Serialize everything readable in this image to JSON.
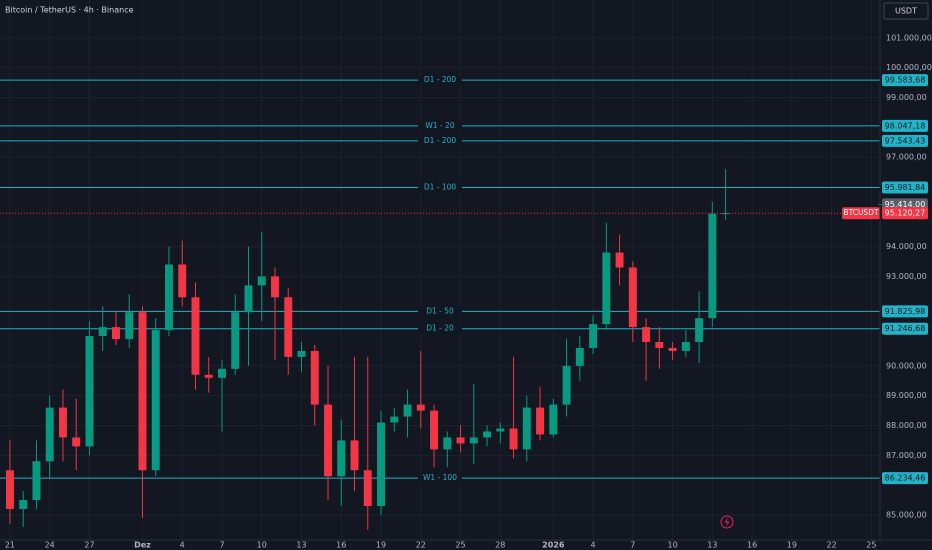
{
  "chart_data": {
    "type": "candlestick",
    "title": "Bitcoin / TetherUS · 4h · Binance",
    "currency": "USDT",
    "up_color": "#089981",
    "down_color": "#f23645",
    "level_color": "#22b3c6",
    "grid": true,
    "xlim": [
      -0.75,
      65.65
    ],
    "ylim": [
      84160,
      102270
    ],
    "x": [
      0,
      1,
      2,
      3,
      4,
      5,
      6,
      7,
      8,
      9,
      10,
      11,
      12,
      13,
      14,
      15,
      16,
      17,
      18,
      19,
      20,
      21,
      22,
      23,
      24,
      25,
      26,
      27,
      28,
      29,
      30,
      31,
      32,
      33,
      34,
      35,
      36,
      37,
      38,
      39,
      40,
      41,
      42,
      43,
      44,
      45,
      46,
      47,
      48,
      49,
      50,
      51,
      52,
      53,
      54
    ],
    "open": [
      86500,
      85200,
      85500,
      86800,
      88600,
      87600,
      87300,
      91000,
      91300,
      90900,
      91800,
      86500,
      91200,
      93400,
      92300,
      89700,
      89600,
      89900,
      91800,
      92700,
      93000,
      92300,
      90300,
      90500,
      88700,
      86300,
      87500,
      86500,
      85300,
      88100,
      88300,
      88700,
      88500,
      87200,
      87600,
      87400,
      87600,
      87800,
      87900,
      87200,
      88600,
      87700,
      88700,
      90000,
      90600,
      91400,
      93800,
      93300,
      91300,
      90800,
      90600,
      90500,
      90800,
      91600,
      95100
    ],
    "high": [
      87500,
      85800,
      87500,
      89000,
      89200,
      88900,
      91500,
      92000,
      91800,
      92400,
      92000,
      91600,
      94000,
      94200,
      92800,
      90300,
      90200,
      92400,
      94000,
      94500,
      93300,
      92600,
      90800,
      90700,
      90000,
      88200,
      90300,
      90300,
      88500,
      88600,
      89200,
      90500,
      88700,
      87800,
      88000,
      89400,
      88000,
      88100,
      90300,
      89000,
      89300,
      88900,
      90900,
      91000,
      91700,
      94800,
      94400,
      93500,
      91600,
      91300,
      90800,
      91200,
      92500,
      95500,
      96600
    ],
    "low": [
      84700,
      84600,
      85200,
      86200,
      86800,
      86500,
      87000,
      90500,
      90700,
      90600,
      84900,
      86300,
      91000,
      92000,
      89200,
      89100,
      87800,
      89700,
      90000,
      91500,
      90200,
      89700,
      89800,
      88000,
      85500,
      85300,
      85800,
      84500,
      85000,
      87800,
      87600,
      87900,
      86600,
      86600,
      87100,
      86700,
      87300,
      87400,
      86900,
      86800,
      87500,
      87600,
      88300,
      89500,
      90400,
      91200,
      92700,
      90800,
      89500,
      89900,
      90200,
      90300,
      90100,
      91300,
      94900
    ],
    "close": [
      85200,
      85500,
      86800,
      88600,
      87600,
      87300,
      91000,
      91300,
      90900,
      91800,
      86500,
      91200,
      93400,
      92300,
      89700,
      89600,
      89900,
      91800,
      92700,
      93000,
      92300,
      90300,
      90500,
      88700,
      86300,
      87500,
      86500,
      85300,
      88100,
      88300,
      88700,
      88500,
      87200,
      87600,
      87400,
      87600,
      87800,
      87900,
      87200,
      88600,
      87700,
      88700,
      90000,
      90600,
      91400,
      93800,
      93300,
      91300,
      90800,
      90600,
      90500,
      90800,
      91600,
      95100,
      95120.27
    ],
    "xticks": [
      {
        "value": 0,
        "label": "21"
      },
      {
        "value": 3,
        "label": "24"
      },
      {
        "value": 6,
        "label": "27"
      },
      {
        "value": 10,
        "label": "Dez"
      },
      {
        "value": 13,
        "label": "4"
      },
      {
        "value": 16,
        "label": "7"
      },
      {
        "value": 19,
        "label": "10"
      },
      {
        "value": 22,
        "label": "13"
      },
      {
        "value": 25,
        "label": "16"
      },
      {
        "value": 28,
        "label": "19"
      },
      {
        "value": 31,
        "label": "22"
      },
      {
        "value": 34,
        "label": "25"
      },
      {
        "value": 37,
        "label": "28"
      },
      {
        "value": 41,
        "label": "2026"
      },
      {
        "value": 44,
        "label": "4"
      },
      {
        "value": 47,
        "label": "7"
      },
      {
        "value": 50,
        "label": "10"
      },
      {
        "value": 53,
        "label": "13"
      },
      {
        "value": 56,
        "label": "16"
      },
      {
        "value": 59,
        "label": "19"
      },
      {
        "value": 62,
        "label": "22"
      },
      {
        "value": 65,
        "label": "25"
      }
    ],
    "yticks": [
      {
        "value": 101000,
        "label": "101.000,00"
      },
      {
        "value": 100000,
        "label": "100.000,00"
      },
      {
        "value": 99000,
        "label": "99.000,00"
      },
      {
        "value": 97000,
        "label": "97.000,00"
      },
      {
        "value": 94000,
        "label": "94.000,00"
      },
      {
        "value": 93000,
        "label": "93.000,00"
      },
      {
        "value": 90000,
        "label": "90.000,00"
      },
      {
        "value": 89000,
        "label": "89.000,00"
      },
      {
        "value": 88000,
        "label": "88.000,00"
      },
      {
        "value": 87000,
        "label": "87.000,00"
      },
      {
        "value": 85000,
        "label": "85.000,00"
      }
    ],
    "levels": [
      {
        "name": "D1 - 200",
        "value": 99583.68,
        "label": "99.583,68"
      },
      {
        "name": "W1 - 20",
        "value": 98047.18,
        "label": "98.047,18"
      },
      {
        "name": "D1 - 200",
        "value": 97543.43,
        "label": "97.543,43"
      },
      {
        "name": "D1 - 100",
        "value": 95981.84,
        "label": "95.981,84"
      },
      {
        "name": "D1 - 50",
        "value": 91825.98,
        "label": "91.825,98"
      },
      {
        "name": "D1 - 20",
        "value": 91246.68,
        "label": "91.246,68"
      },
      {
        "name": "W1 - 100",
        "value": 86234.46,
        "label": "86.234,46"
      }
    ],
    "price_tags": [
      {
        "value": 95414,
        "label": "95.414,00",
        "color": "#5d606b"
      },
      {
        "value": 95120.27,
        "label": "95.120,27",
        "name": "BTCUSDT",
        "color": "#f23645"
      }
    ]
  }
}
